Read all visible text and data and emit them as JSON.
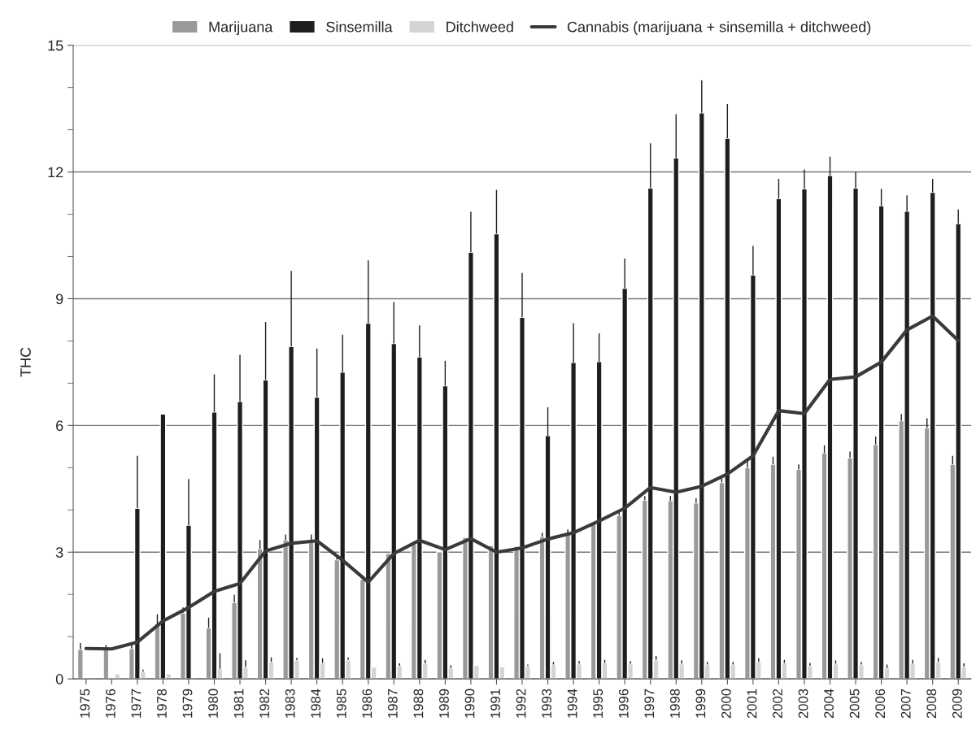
{
  "chart_data": {
    "type": "bar",
    "ylabel": "THC",
    "categories": [
      "1975",
      "1976",
      "1977",
      "1978",
      "1979",
      "1980",
      "1981",
      "1982",
      "1983",
      "1984",
      "1985",
      "1986",
      "1987",
      "1988",
      "1989",
      "1990",
      "1991",
      "1992",
      "1993",
      "1994",
      "1995",
      "1996",
      "1997",
      "1998",
      "1999",
      "2000",
      "2001",
      "2002",
      "2003",
      "2004",
      "2005",
      "2006",
      "2007",
      "2008",
      "2009"
    ],
    "series": [
      {
        "name": "Marijuana",
        "color": "#999999",
        "values": [
          0.7,
          0.7,
          0.72,
          1.31,
          1.56,
          1.21,
          1.81,
          3.08,
          3.29,
          3.29,
          2.82,
          2.36,
          2.97,
          3.19,
          3.01,
          3.35,
          3.16,
          3.14,
          3.37,
          3.44,
          3.71,
          3.87,
          4.23,
          4.22,
          4.17,
          4.65,
          5.0,
          5.08,
          4.96,
          5.35,
          5.23,
          5.55,
          6.11,
          5.95,
          5.08
        ],
        "errors": [
          [
            0.7,
            0.85
          ],
          [
            0.7,
            0.8
          ],
          [
            0.72,
            0.83
          ],
          [
            1.31,
            1.53
          ],
          [
            1.56,
            1.69
          ],
          [
            1.21,
            1.45
          ],
          [
            1.81,
            1.99
          ],
          [
            3.08,
            3.29
          ],
          [
            3.29,
            3.42
          ],
          [
            3.29,
            3.42
          ],
          [
            2.82,
            2.9
          ],
          null,
          null,
          null,
          null,
          null,
          null,
          null,
          [
            3.37,
            3.46
          ],
          [
            3.44,
            3.54
          ],
          null,
          [
            3.87,
            3.95
          ],
          [
            4.23,
            4.33
          ],
          [
            4.22,
            4.33
          ],
          [
            4.17,
            4.28
          ],
          [
            4.65,
            4.74
          ],
          [
            5.0,
            5.15
          ],
          [
            5.08,
            5.26
          ],
          [
            4.96,
            5.08
          ],
          [
            5.35,
            5.53
          ],
          [
            5.23,
            5.38
          ],
          [
            5.55,
            5.74
          ],
          [
            6.11,
            6.27
          ],
          [
            5.95,
            6.17
          ],
          [
            5.08,
            5.28
          ]
        ]
      },
      {
        "name": "Sinsemilla",
        "color": "#1e1e1e",
        "values": [
          null,
          null,
          4.04,
          6.27,
          3.64,
          6.32,
          6.57,
          7.08,
          7.87,
          6.67,
          7.26,
          8.42,
          7.94,
          7.62,
          6.94,
          10.1,
          10.54,
          8.56,
          5.76,
          7.49,
          7.51,
          9.25,
          11.62,
          12.33,
          13.4,
          12.8,
          9.56,
          11.37,
          11.6,
          11.92,
          11.62,
          11.2,
          11.07,
          11.52,
          10.78
        ],
        "errors": [
          null,
          null,
          [
            4.04,
            5.28
          ],
          null,
          [
            3.64,
            4.73
          ],
          [
            6.32,
            7.21
          ],
          [
            6.57,
            7.67
          ],
          [
            7.08,
            8.45
          ],
          [
            7.87,
            9.66
          ],
          [
            6.67,
            7.82
          ],
          [
            7.26,
            8.15
          ],
          [
            8.42,
            9.91
          ],
          [
            7.94,
            8.92
          ],
          [
            7.62,
            8.37
          ],
          [
            6.94,
            7.53
          ],
          [
            10.1,
            11.06
          ],
          [
            10.54,
            11.58
          ],
          [
            8.56,
            9.61
          ],
          [
            5.76,
            6.43
          ],
          [
            7.49,
            8.42
          ],
          [
            7.51,
            8.18
          ],
          [
            9.25,
            9.95
          ],
          [
            11.62,
            12.68
          ],
          [
            12.33,
            13.37
          ],
          [
            13.4,
            14.17
          ],
          [
            12.8,
            13.61
          ],
          [
            9.56,
            10.25
          ],
          [
            11.37,
            11.84
          ],
          [
            11.6,
            12.06
          ],
          [
            11.92,
            12.36
          ],
          [
            11.62,
            12.0
          ],
          [
            11.2,
            11.6
          ],
          [
            11.07,
            11.45
          ],
          [
            11.52,
            11.84
          ],
          [
            10.78,
            11.11
          ]
        ]
      },
      {
        "name": "Ditchweed",
        "color": "#d4d4d4",
        "values": [
          null,
          0.12,
          0.17,
          0.12,
          null,
          0.24,
          0.28,
          0.4,
          0.44,
          0.38,
          0.45,
          0.28,
          0.31,
          0.37,
          0.26,
          0.32,
          0.29,
          0.31,
          0.34,
          0.36,
          0.38,
          0.36,
          0.45,
          0.36,
          0.34,
          0.34,
          0.4,
          0.38,
          0.31,
          0.36,
          0.34,
          0.26,
          0.36,
          0.4,
          0.29
        ],
        "errors": [
          null,
          null,
          [
            0.17,
            0.22
          ],
          null,
          null,
          [
            0.24,
            0.61
          ],
          [
            0.28,
            0.44
          ],
          [
            0.4,
            0.51
          ],
          [
            0.44,
            0.5
          ],
          [
            0.38,
            0.49
          ],
          [
            0.45,
            0.51
          ],
          null,
          [
            0.31,
            0.37
          ],
          [
            0.37,
            0.45
          ],
          [
            0.26,
            0.32
          ],
          null,
          null,
          [
            0.31,
            0.34
          ],
          [
            0.34,
            0.4
          ],
          [
            0.36,
            0.42
          ],
          [
            0.38,
            0.45
          ],
          [
            0.36,
            0.42
          ],
          [
            0.45,
            0.54
          ],
          [
            0.36,
            0.44
          ],
          [
            0.34,
            0.4
          ],
          [
            0.34,
            0.4
          ],
          [
            0.4,
            0.49
          ],
          [
            0.38,
            0.45
          ],
          [
            0.31,
            0.38
          ],
          [
            0.36,
            0.44
          ],
          [
            0.34,
            0.4
          ],
          [
            0.26,
            0.34
          ],
          [
            0.36,
            0.45
          ],
          [
            0.4,
            0.5
          ],
          [
            0.29,
            0.37
          ]
        ]
      },
      {
        "name": "Cannabis (marijuana + sinsemilla + ditchweed)",
        "type": "line",
        "color": "#3a3a3a",
        "values": [
          0.72,
          0.71,
          0.87,
          1.37,
          1.69,
          2.07,
          2.26,
          3.03,
          3.21,
          3.27,
          2.81,
          2.29,
          2.97,
          3.28,
          3.06,
          3.32,
          3.0,
          3.1,
          3.31,
          3.46,
          3.74,
          4.04,
          4.53,
          4.42,
          4.56,
          4.85,
          5.28,
          6.35,
          6.28,
          7.09,
          7.15,
          7.5,
          8.26,
          8.59,
          8.01
        ]
      }
    ],
    "ylim": [
      0,
      15
    ],
    "yticks": [
      0,
      {
        "value": 1,
        "label": null
      },
      {
        "value": 2,
        "label": null
      },
      3,
      {
        "value": 4,
        "label": null
      },
      {
        "value": 5,
        "label": null
      },
      6,
      {
        "value": 7,
        "label": null
      },
      {
        "value": 8,
        "label": null
      },
      9,
      {
        "value": 10,
        "label": null
      },
      {
        "value": 11,
        "label": null
      },
      12,
      {
        "value": 13,
        "label": null
      },
      {
        "value": 14,
        "label": null
      },
      15
    ],
    "grid": "y",
    "legend": "top",
    "marker": "none",
    "line_style": "solid"
  }
}
